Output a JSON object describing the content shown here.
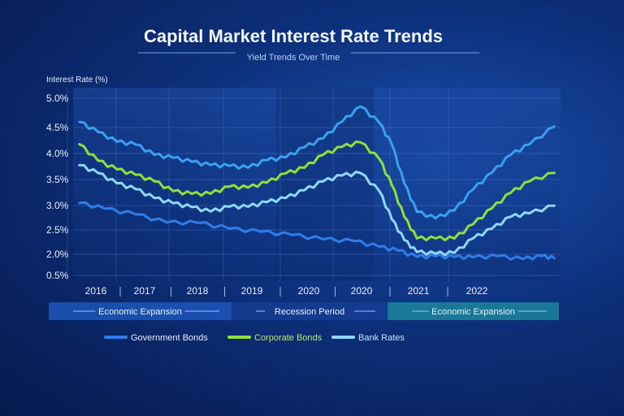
{
  "chart_data": {
    "type": "line",
    "title": "Capital Market Interest Rate Trends",
    "subtitle": "Yield Trends Over Time",
    "ylabel": "Interest Rate (%)",
    "y_ticks": [
      "5.0%",
      "4.5%",
      "4.0%",
      "3.5%",
      "3.0%",
      "2.5%",
      "2.0%",
      "0.5%"
    ],
    "x_ticks": [
      "2016",
      "2017",
      "2018",
      "2019",
      "2020",
      "2020",
      "2021",
      "2022"
    ],
    "x_range": [
      2015.7,
      2023.5
    ],
    "grid": true,
    "periods": [
      {
        "label": "Economic Expansion",
        "from": 2015.7,
        "to": 2018.8,
        "color": "#1f5cc4"
      },
      {
        "label": "Recession Period",
        "from": 2018.8,
        "to": 2020.9,
        "color": "#163f96"
      },
      {
        "label": "Economic Expansion",
        "from": 2020.9,
        "to": 2023.5,
        "color": "#1d8fa0"
      }
    ],
    "legend_position": "bottom",
    "series": [
      {
        "name": "Government Bonds",
        "color": "#2f7dea",
        "x": [
          2015.8,
          2016.2,
          2016.7,
          2017.2,
          2017.7,
          2018.2,
          2018.7,
          2019.2,
          2019.7,
          2020.2,
          2020.6,
          2020.9,
          2021.2,
          2021.5,
          2021.8,
          2022.1,
          2022.5,
          2022.9,
          2023.2,
          2023.4
        ],
        "values": [
          3.05,
          2.95,
          2.8,
          2.68,
          2.62,
          2.55,
          2.45,
          2.4,
          2.32,
          2.25,
          2.18,
          2.05,
          1.9,
          1.82,
          1.82,
          1.82,
          1.8,
          1.75,
          1.78,
          1.8
        ]
      },
      {
        "name": "Corporate Bonds",
        "color": "#8fe03a",
        "x": [
          2015.8,
          2016.1,
          2016.4,
          2016.7,
          2017.0,
          2017.3,
          2017.6,
          2017.9,
          2018.2,
          2018.5,
          2018.8,
          2019.1,
          2019.4,
          2019.7,
          2020.0,
          2020.3,
          2020.6,
          2020.8,
          2021.0,
          2021.2,
          2021.5,
          2021.8,
          2022.1,
          2022.4,
          2022.7,
          2023.0,
          2023.4
        ],
        "values": [
          4.2,
          3.85,
          3.7,
          3.6,
          3.45,
          3.3,
          3.2,
          3.25,
          3.35,
          3.35,
          3.45,
          3.6,
          3.75,
          3.95,
          4.15,
          4.2,
          3.9,
          3.4,
          2.75,
          2.35,
          2.3,
          2.35,
          2.6,
          2.95,
          3.25,
          3.45,
          3.65
        ]
      },
      {
        "name": "Bank Rates",
        "color": "#8fd8f5",
        "x": [
          2015.8,
          2016.1,
          2016.4,
          2016.7,
          2017.0,
          2017.3,
          2017.6,
          2017.9,
          2018.2,
          2018.5,
          2018.8,
          2019.1,
          2019.4,
          2019.7,
          2020.0,
          2020.3,
          2020.6,
          2020.8,
          2021.0,
          2021.2,
          2021.5,
          2021.8,
          2022.1,
          2022.4,
          2022.7,
          2023.0,
          2023.4
        ],
        "values": [
          3.8,
          3.6,
          3.45,
          3.3,
          3.15,
          3.05,
          2.95,
          2.9,
          2.95,
          3.0,
          3.05,
          3.15,
          3.3,
          3.45,
          3.6,
          3.6,
          3.3,
          2.7,
          2.3,
          2.05,
          2.0,
          2.05,
          2.3,
          2.55,
          2.75,
          2.85,
          3.0
        ]
      },
      {
        "name": "",
        "color": "#3aa0f0",
        "x": [
          2015.8,
          2016.1,
          2016.4,
          2016.7,
          2017.0,
          2017.3,
          2017.6,
          2017.9,
          2018.2,
          2018.5,
          2018.8,
          2019.1,
          2019.4,
          2019.7,
          2020.0,
          2020.3,
          2020.6,
          2020.8,
          2021.0,
          2021.2,
          2021.5,
          2021.8,
          2022.1,
          2022.4,
          2022.7,
          2023.0,
          2023.4
        ],
        "values": [
          4.6,
          4.4,
          4.25,
          4.15,
          4.0,
          3.9,
          3.85,
          3.78,
          3.75,
          3.75,
          3.85,
          3.95,
          4.1,
          4.3,
          4.6,
          4.85,
          4.6,
          4.15,
          3.45,
          2.85,
          2.75,
          2.9,
          3.3,
          3.65,
          3.95,
          4.2,
          4.5
        ]
      }
    ]
  }
}
